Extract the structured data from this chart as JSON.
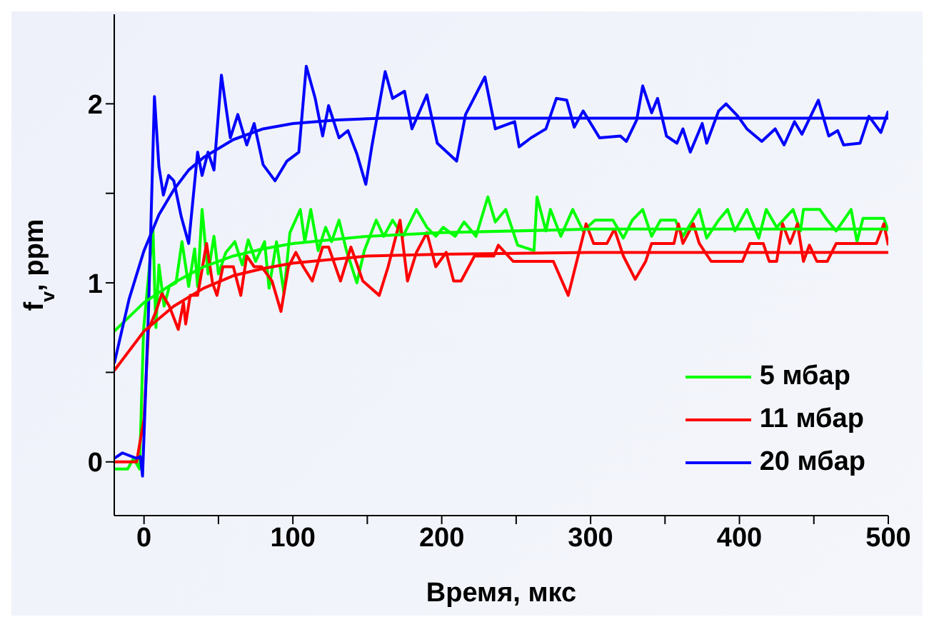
{
  "chart_data": {
    "type": "line",
    "xlabel": "Время, мкс",
    "ylabel": "f$_{v}$, ppm",
    "xlim": [
      -20,
      500
    ],
    "xticks": [
      0,
      {
        "value": 50,
        "label": null
      },
      100,
      {
        "value": 150,
        "label": null
      },
      200,
      {
        "value": 250,
        "label": null
      },
      300,
      {
        "value": 350,
        "label": null
      },
      400,
      {
        "value": 450,
        "label": null
      },
      500
    ],
    "ylim": [
      -0.3,
      2.5
    ],
    "yticks": [
      0,
      {
        "value": 0.5,
        "label": null
      },
      1,
      {
        "value": 1.5,
        "label": null
      },
      2
    ],
    "legend": "bottom right",
    "series": [
      {
        "name": "5 мбар",
        "color": "#00ff00",
        "x": [
          -20,
          -11,
          -7,
          -3,
          -0.3,
          6,
          8,
          10,
          13.5,
          17,
          21.5,
          25.5,
          30,
          34,
          36,
          39,
          43,
          47,
          50,
          55,
          61,
          66,
          70,
          75,
          81,
          84,
          89,
          94,
          98,
          105,
          108,
          112,
          117,
          122,
          126,
          131,
          136,
          143,
          148,
          156,
          161,
          167,
          174,
          183,
          190,
          196,
          201,
          209,
          215,
          223,
          231,
          236,
          243,
          251,
          262,
          264,
          270,
          273,
          280,
          288,
          295,
          303,
          315,
          322,
          328,
          335,
          341,
          347,
          357,
          362,
          373,
          378,
          386,
          392,
          397,
          405,
          413,
          418,
          425,
          436,
          441,
          443,
          454,
          459,
          465,
          475,
          479,
          483,
          497,
          500
        ],
        "values": [
          -0.04,
          -0.04,
          0.02,
          -0.04,
          0.74,
          1.3,
          0.75,
          1.1,
          0.87,
          0.98,
          1.0,
          1.23,
          0.98,
          1.19,
          0.98,
          1.41,
          1.05,
          1.26,
          1.05,
          1.17,
          1.23,
          1.1,
          1.24,
          1.12,
          1.23,
          0.97,
          1.23,
          0.94,
          1.28,
          1.41,
          1.23,
          1.41,
          1.18,
          1.31,
          1.23,
          1.35,
          1.18,
          1.0,
          1.18,
          1.35,
          1.26,
          1.35,
          1.26,
          1.41,
          1.31,
          1.26,
          1.31,
          1.26,
          1.34,
          1.26,
          1.48,
          1.34,
          1.41,
          1.21,
          1.18,
          1.48,
          1.29,
          1.41,
          1.26,
          1.41,
          1.29,
          1.35,
          1.35,
          1.25,
          1.35,
          1.41,
          1.26,
          1.35,
          1.35,
          1.26,
          1.41,
          1.25,
          1.35,
          1.41,
          1.29,
          1.41,
          1.25,
          1.41,
          1.31,
          1.41,
          1.29,
          1.41,
          1.41,
          1.35,
          1.29,
          1.41,
          1.23,
          1.36,
          1.36,
          1.29
        ]
      },
      {
        "name": "11 мбар",
        "color": "#ff0000",
        "x": [
          -20,
          -5,
          0,
          3,
          8,
          12,
          17,
          23,
          26.5,
          28,
          31,
          36,
          42,
          46,
          49,
          53,
          60,
          65,
          69,
          74,
          79,
          86,
          92,
          97,
          102,
          107,
          113,
          120,
          124,
          132,
          139,
          147,
          158,
          164,
          172,
          177,
          183,
          190,
          196,
          203,
          208,
          213,
          222,
          235,
          238,
          248,
          275,
          285,
          297,
          302,
          311,
          316,
          322,
          330,
          337,
          341,
          356,
          359,
          362,
          369,
          373,
          381,
          402,
          407,
          416,
          420,
          425,
          429,
          434,
          439,
          443,
          447,
          452,
          459,
          465,
          492,
          497,
          500
        ],
        "values": [
          0,
          0,
          0.24,
          0.74,
          0.84,
          0.94,
          0.87,
          0.74,
          0.89,
          0.77,
          0.93,
          0.93,
          1.22,
          1.0,
          0.93,
          1.09,
          1.09,
          0.93,
          1.15,
          1.09,
          1.09,
          1.01,
          0.84,
          1.09,
          1.17,
          1.09,
          1.01,
          1.2,
          1.2,
          1.01,
          1.2,
          1.01,
          0.93,
          1.09,
          1.35,
          1.01,
          1.17,
          1.28,
          1.09,
          1.17,
          1.01,
          1.01,
          1.15,
          1.15,
          1.21,
          1.12,
          1.12,
          0.93,
          1.33,
          1.22,
          1.22,
          1.3,
          1.15,
          1.02,
          1.12,
          1.22,
          1.22,
          1.33,
          1.22,
          1.33,
          1.22,
          1.12,
          1.12,
          1.22,
          1.22,
          1.12,
          1.12,
          1.33,
          1.22,
          1.33,
          1.12,
          1.21,
          1.12,
          1.12,
          1.22,
          1.22,
          1.33,
          1.21
        ]
      },
      {
        "name": "20 мбар",
        "color": "#0000ff",
        "x": [
          -20,
          -14.5,
          -5,
          -2.5,
          -1,
          3,
          7,
          10,
          13,
          16.5,
          20,
          25,
          30,
          36,
          39,
          43,
          47,
          52,
          58,
          63,
          69,
          74,
          80,
          88,
          96,
          104,
          109,
          115,
          120,
          124,
          131,
          137,
          143,
          149,
          153,
          162,
          167,
          175,
          180,
          190,
          197,
          210,
          216,
          229,
          236,
          249,
          252,
          260,
          270,
          277,
          284,
          289,
          295,
          306,
          320,
          324,
          331,
          335,
          341,
          345,
          351,
          358,
          362,
          367,
          375,
          378,
          386,
          391,
          399,
          405,
          415,
          424,
          430,
          437,
          442,
          453,
          460,
          466,
          470,
          481,
          487,
          495,
          500
        ],
        "values": [
          0.02,
          0.05,
          0.02,
          0.03,
          -0.08,
          0.84,
          2.04,
          1.65,
          1.49,
          1.6,
          1.57,
          1.37,
          1.22,
          1.73,
          1.6,
          1.73,
          1.63,
          2.16,
          1.81,
          1.94,
          1.77,
          1.89,
          1.66,
          1.57,
          1.68,
          1.73,
          2.21,
          2.03,
          1.82,
          1.99,
          1.81,
          1.85,
          1.72,
          1.55,
          1.76,
          2.18,
          2.03,
          2.07,
          1.86,
          2.05,
          1.78,
          1.68,
          1.94,
          2.15,
          1.86,
          1.9,
          1.76,
          1.81,
          1.86,
          2.03,
          2.02,
          1.87,
          1.96,
          1.81,
          1.82,
          1.79,
          1.91,
          2.1,
          1.95,
          2.03,
          1.82,
          1.78,
          1.86,
          1.73,
          1.89,
          1.78,
          1.96,
          2.0,
          1.93,
          1.86,
          1.79,
          1.86,
          1.77,
          1.9,
          1.83,
          2.02,
          1.82,
          1.85,
          1.77,
          1.78,
          1.93,
          1.84,
          1.96
        ]
      },
      {
        "color": "#00ff00",
        "x": [
          -20,
          0,
          20,
          40,
          60,
          80,
          100,
          150,
          200,
          300,
          500
        ],
        "values": [
          0.73,
          0.89,
          1.0,
          1.09,
          1.15,
          1.19,
          1.22,
          1.26,
          1.28,
          1.3,
          1.3
        ]
      },
      {
        "color": "#ff0000",
        "x": [
          -20,
          0,
          20,
          40,
          60,
          80,
          100,
          150,
          200,
          300,
          500
        ],
        "values": [
          0.51,
          0.73,
          0.87,
          0.97,
          1.04,
          1.08,
          1.11,
          1.15,
          1.16,
          1.17,
          1.17
        ]
      },
      {
        "color": "#0000ff",
        "x": [
          -20,
          -10,
          0,
          10,
          20,
          30,
          40,
          60,
          80,
          100,
          130,
          160,
          500
        ],
        "values": [
          0.55,
          0.91,
          1.18,
          1.38,
          1.52,
          1.63,
          1.7,
          1.8,
          1.86,
          1.89,
          1.91,
          1.92,
          1.92
        ]
      }
    ]
  }
}
